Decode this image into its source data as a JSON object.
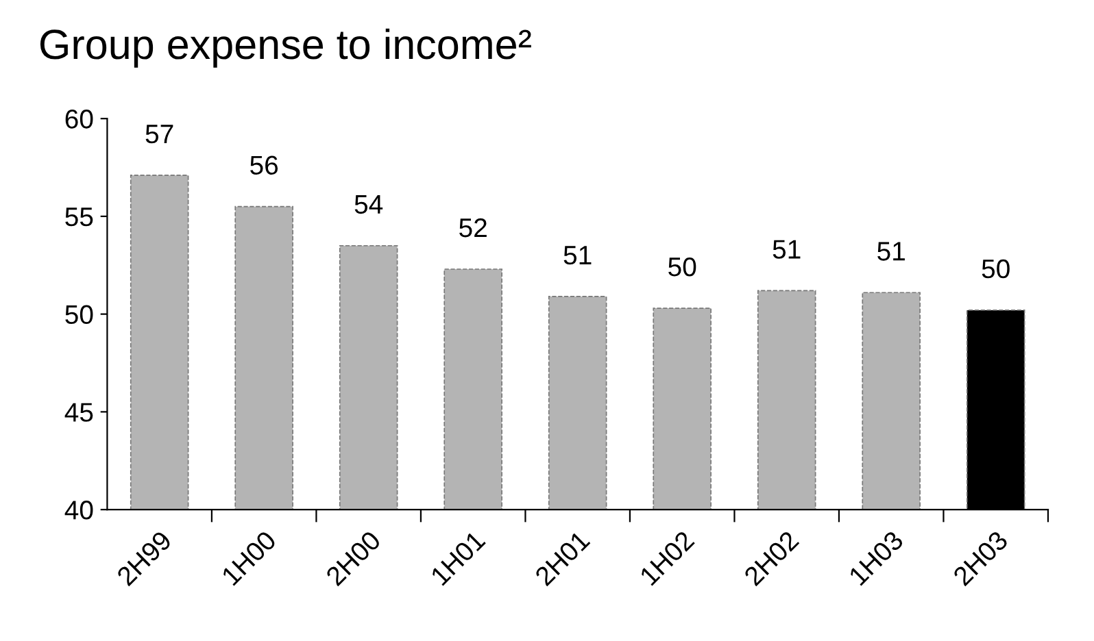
{
  "chart_data": {
    "type": "bar",
    "title": "Group expense to income²",
    "categories": [
      "2H99",
      "1H00",
      "2H00",
      "1H01",
      "2H01",
      "1H02",
      "2H02",
      "1H03",
      "2H03"
    ],
    "values": [
      57.1,
      55.5,
      53.5,
      52.3,
      50.9,
      50.3,
      51.2,
      51.1,
      50.2
    ],
    "colors": [
      "#b4b4b4",
      "#b4b4b4",
      "#b4b4b4",
      "#b4b4b4",
      "#b4b4b4",
      "#b4b4b4",
      "#b4b4b4",
      "#b4b4b4",
      "#000000"
    ],
    "value_labels": [
      "57",
      "56",
      "54",
      "52",
      "51",
      "50",
      "51",
      "51",
      "50"
    ],
    "ylim": [
      40,
      60
    ],
    "yticks": [
      40,
      45,
      50,
      55,
      60
    ],
    "grid": false,
    "legend": false
  }
}
